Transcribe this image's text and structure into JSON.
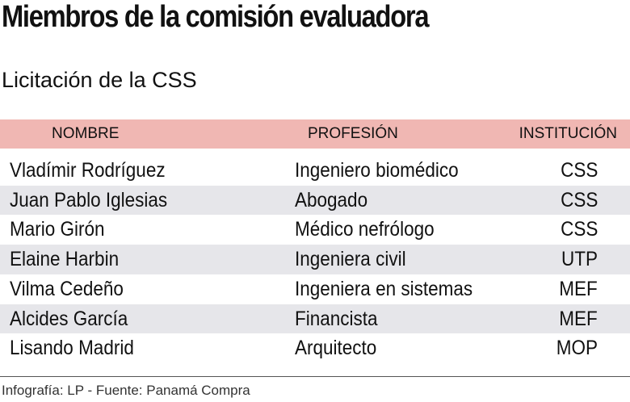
{
  "header": {
    "title": "Miembros de la comisión evaluadora",
    "subtitle": "Licitación de la CSS"
  },
  "table": {
    "columns": [
      "NOMBRE",
      "PROFESIÓN",
      "INSTITUCIÓN"
    ],
    "rows": [
      [
        "Vladímir Rodríguez",
        "Ingeniero biomédico",
        "CSS"
      ],
      [
        "Juan Pablo Iglesias",
        "Abogado",
        "CSS"
      ],
      [
        "Mario Girón",
        "Médico nefrólogo",
        "CSS"
      ],
      [
        "Elaine Harbin",
        "Ingeniera civil",
        "UTP"
      ],
      [
        "Vilma Cedeño",
        "Ingeniera en sistemas",
        "MEF"
      ],
      [
        "Alcides García",
        "Financista",
        "MEF"
      ],
      [
        "Lisando Madrid",
        "Arquitecto",
        "MOP"
      ]
    ]
  },
  "footer": {
    "source": "Infografía: LP - Fuente: Panamá Compra"
  }
}
